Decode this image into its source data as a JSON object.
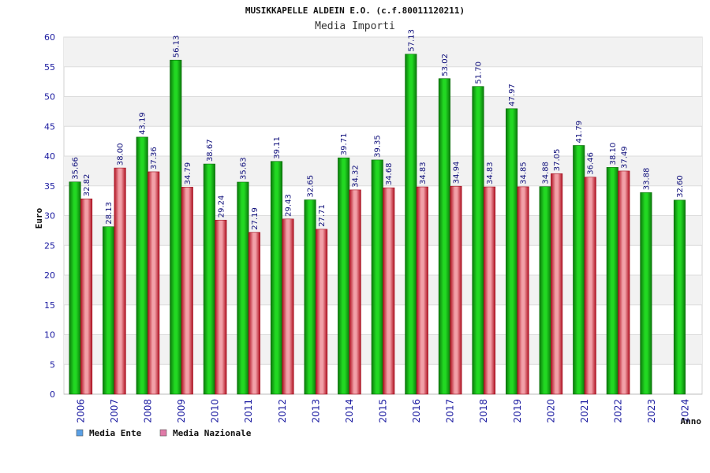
{
  "chart_data": {
    "type": "bar",
    "title": "MUSIKKAPELLE ALDEIN E.O. (c.f.80011120211)",
    "subtitle": "Media Importi",
    "ylabel": "Euro",
    "xlabel": "Anno",
    "ylim": [
      0,
      60
    ],
    "yticks": [
      0,
      5,
      10,
      15,
      20,
      25,
      30,
      35,
      40,
      45,
      50,
      55,
      60
    ],
    "legend_position": "bottom-left",
    "categories": [
      "2006",
      "2007",
      "2008",
      "2009",
      "2010",
      "2011",
      "2012",
      "2013",
      "2014",
      "2015",
      "2016",
      "2017",
      "2018",
      "2019",
      "2020",
      "2021",
      "2022",
      "2023",
      "2024"
    ],
    "series": [
      {
        "name": "Media Ente",
        "color": "#11b511",
        "legend_color": "#5aa0e6",
        "values": [
          35.66,
          28.13,
          43.19,
          56.13,
          38.67,
          35.63,
          39.11,
          32.65,
          39.71,
          39.35,
          57.13,
          53.02,
          51.7,
          47.97,
          34.88,
          41.79,
          38.1,
          33.88,
          32.6
        ],
        "labels": [
          "35.66",
          "28.13",
          "43.19",
          "56.13",
          "38.67",
          "35.63",
          "39.11",
          "32.65",
          "39.71",
          "39.35",
          "57.13",
          "53.02",
          "51.70",
          "47.97",
          "34.88",
          "41.79",
          "38.10",
          "33.88",
          "32.60"
        ]
      },
      {
        "name": "Media Nazionale",
        "color": "#e8303c",
        "legend_color": "#e07aa8",
        "values": [
          32.82,
          38.0,
          37.36,
          34.79,
          29.24,
          27.19,
          29.43,
          27.71,
          34.32,
          34.68,
          34.83,
          34.94,
          34.83,
          34.85,
          37.05,
          36.46,
          37.49,
          null,
          null
        ],
        "labels": [
          "32.82",
          "38.00",
          "37.36",
          "34.79",
          "29.24",
          "27.19",
          "29.43",
          "27.71",
          "34.32",
          "34.68",
          "34.83",
          "34.94",
          "34.83",
          "34.85",
          "37.05",
          "36.46",
          "37.49",
          null,
          null
        ]
      }
    ]
  }
}
